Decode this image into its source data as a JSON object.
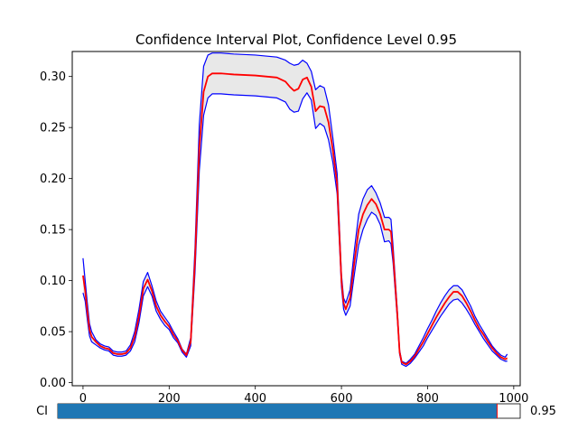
{
  "chart_data": {
    "type": "line",
    "title": "Confidence Interval Plot, Confidence Level 0.95",
    "xlabel": "",
    "ylabel": "",
    "xlim": [
      -25,
      1015
    ],
    "ylim": [
      -0.003,
      0.3245
    ],
    "xticks": [
      0,
      200,
      400,
      600,
      800,
      1000
    ],
    "yticks": [
      0.0,
      0.05,
      0.1,
      0.15,
      0.2,
      0.25,
      0.3
    ],
    "ytick_labels": [
      "0.00",
      "0.05",
      "0.10",
      "0.15",
      "0.20",
      "0.25",
      "0.30"
    ],
    "grid": false,
    "series": [
      {
        "role": "mean",
        "color": "#ff0000",
        "x": [
          0,
          5,
          10,
          15,
          20,
          30,
          40,
          50,
          60,
          70,
          80,
          90,
          100,
          110,
          120,
          130,
          140,
          150,
          160,
          170,
          180,
          190,
          200,
          210,
          220,
          230,
          240,
          250,
          260,
          270,
          280,
          290,
          300,
          320,
          350,
          400,
          450,
          470,
          480,
          490,
          500,
          510,
          520,
          530,
          540,
          550,
          560,
          570,
          580,
          590,
          600,
          605,
          610,
          620,
          630,
          640,
          650,
          660,
          670,
          680,
          690,
          700,
          710,
          715,
          720,
          730,
          735,
          740,
          750,
          760,
          770,
          780,
          790,
          800,
          810,
          820,
          830,
          840,
          850,
          860,
          870,
          880,
          890,
          900,
          910,
          920,
          930,
          940,
          950,
          960,
          970,
          980,
          985
        ],
        "y": [
          0.105,
          0.09,
          0.07,
          0.052,
          0.045,
          0.04,
          0.036,
          0.034,
          0.033,
          0.029,
          0.028,
          0.028,
          0.029,
          0.034,
          0.045,
          0.065,
          0.092,
          0.101,
          0.09,
          0.075,
          0.066,
          0.06,
          0.055,
          0.047,
          0.041,
          0.032,
          0.027,
          0.04,
          0.12,
          0.23,
          0.285,
          0.3,
          0.303,
          0.303,
          0.302,
          0.301,
          0.299,
          0.295,
          0.29,
          0.286,
          0.288,
          0.297,
          0.299,
          0.29,
          0.266,
          0.271,
          0.27,
          0.255,
          0.228,
          0.195,
          0.1,
          0.078,
          0.072,
          0.083,
          0.118,
          0.15,
          0.165,
          0.174,
          0.18,
          0.175,
          0.165,
          0.15,
          0.15,
          0.148,
          0.125,
          0.065,
          0.03,
          0.02,
          0.018,
          0.021,
          0.026,
          0.033,
          0.04,
          0.048,
          0.056,
          0.064,
          0.071,
          0.078,
          0.084,
          0.089,
          0.089,
          0.085,
          0.078,
          0.07,
          0.061,
          0.053,
          0.047,
          0.04,
          0.034,
          0.029,
          0.025,
          0.023,
          0.024
        ]
      },
      {
        "role": "upper bound",
        "color": "#0000ff",
        "x": [
          0,
          5,
          10,
          15,
          20,
          30,
          40,
          50,
          60,
          70,
          80,
          90,
          100,
          110,
          120,
          130,
          140,
          150,
          160,
          170,
          180,
          190,
          200,
          210,
          220,
          230,
          240,
          250,
          260,
          270,
          280,
          290,
          300,
          320,
          350,
          400,
          450,
          470,
          480,
          490,
          500,
          510,
          520,
          530,
          540,
          550,
          560,
          570,
          580,
          590,
          600,
          605,
          610,
          620,
          630,
          640,
          650,
          660,
          670,
          680,
          690,
          700,
          710,
          715,
          720,
          730,
          735,
          740,
          750,
          760,
          770,
          780,
          790,
          800,
          810,
          820,
          830,
          840,
          850,
          860,
          870,
          880,
          890,
          900,
          910,
          920,
          930,
          940,
          950,
          960,
          970,
          980,
          985
        ],
        "y": [
          0.122,
          0.1,
          0.078,
          0.058,
          0.05,
          0.042,
          0.038,
          0.036,
          0.035,
          0.031,
          0.03,
          0.03,
          0.031,
          0.037,
          0.05,
          0.072,
          0.099,
          0.108,
          0.095,
          0.08,
          0.07,
          0.064,
          0.058,
          0.05,
          0.043,
          0.033,
          0.028,
          0.044,
          0.132,
          0.253,
          0.31,
          0.321,
          0.323,
          0.323,
          0.322,
          0.321,
          0.319,
          0.316,
          0.313,
          0.311,
          0.312,
          0.316,
          0.313,
          0.305,
          0.287,
          0.291,
          0.289,
          0.272,
          0.24,
          0.205,
          0.106,
          0.083,
          0.078,
          0.091,
          0.13,
          0.165,
          0.18,
          0.189,
          0.193,
          0.186,
          0.176,
          0.162,
          0.162,
          0.16,
          0.133,
          0.069,
          0.032,
          0.021,
          0.019,
          0.023,
          0.028,
          0.036,
          0.044,
          0.053,
          0.061,
          0.07,
          0.078,
          0.085,
          0.091,
          0.095,
          0.095,
          0.091,
          0.083,
          0.075,
          0.065,
          0.057,
          0.05,
          0.043,
          0.036,
          0.031,
          0.027,
          0.025,
          0.028
        ]
      },
      {
        "role": "lower bound",
        "color": "#0000ff",
        "x": [
          0,
          5,
          10,
          15,
          20,
          30,
          40,
          50,
          60,
          70,
          80,
          90,
          100,
          110,
          120,
          130,
          140,
          150,
          160,
          170,
          180,
          190,
          200,
          210,
          220,
          230,
          240,
          250,
          260,
          270,
          280,
          290,
          300,
          320,
          350,
          400,
          450,
          470,
          480,
          490,
          500,
          510,
          520,
          530,
          540,
          550,
          560,
          570,
          580,
          590,
          600,
          605,
          610,
          620,
          630,
          640,
          650,
          660,
          670,
          680,
          690,
          700,
          710,
          715,
          720,
          730,
          735,
          740,
          750,
          760,
          770,
          780,
          790,
          800,
          810,
          820,
          830,
          840,
          850,
          860,
          870,
          880,
          890,
          900,
          910,
          920,
          930,
          940,
          950,
          960,
          970,
          980,
          985
        ],
        "y": [
          0.088,
          0.08,
          0.062,
          0.046,
          0.04,
          0.037,
          0.034,
          0.032,
          0.031,
          0.027,
          0.026,
          0.026,
          0.027,
          0.031,
          0.04,
          0.059,
          0.085,
          0.094,
          0.085,
          0.07,
          0.062,
          0.056,
          0.052,
          0.044,
          0.039,
          0.03,
          0.025,
          0.036,
          0.108,
          0.208,
          0.262,
          0.279,
          0.283,
          0.283,
          0.282,
          0.281,
          0.279,
          0.275,
          0.268,
          0.265,
          0.266,
          0.278,
          0.284,
          0.277,
          0.249,
          0.254,
          0.251,
          0.238,
          0.216,
          0.185,
          0.094,
          0.072,
          0.066,
          0.075,
          0.106,
          0.135,
          0.15,
          0.16,
          0.167,
          0.164,
          0.155,
          0.138,
          0.139,
          0.136,
          0.117,
          0.061,
          0.028,
          0.018,
          0.016,
          0.019,
          0.024,
          0.03,
          0.036,
          0.044,
          0.051,
          0.058,
          0.065,
          0.071,
          0.077,
          0.081,
          0.082,
          0.078,
          0.072,
          0.065,
          0.057,
          0.05,
          0.043,
          0.037,
          0.031,
          0.027,
          0.023,
          0.021,
          0.021
        ]
      }
    ],
    "band_fill": "#e8e8e8",
    "band_edge": "#0000ff"
  },
  "slider": {
    "label": "CI",
    "value_text": "0.95",
    "value": 0.95,
    "min": 0.0,
    "max": 1.0,
    "fill_color": "#1f77b4",
    "marker_color": "#ff0000"
  }
}
